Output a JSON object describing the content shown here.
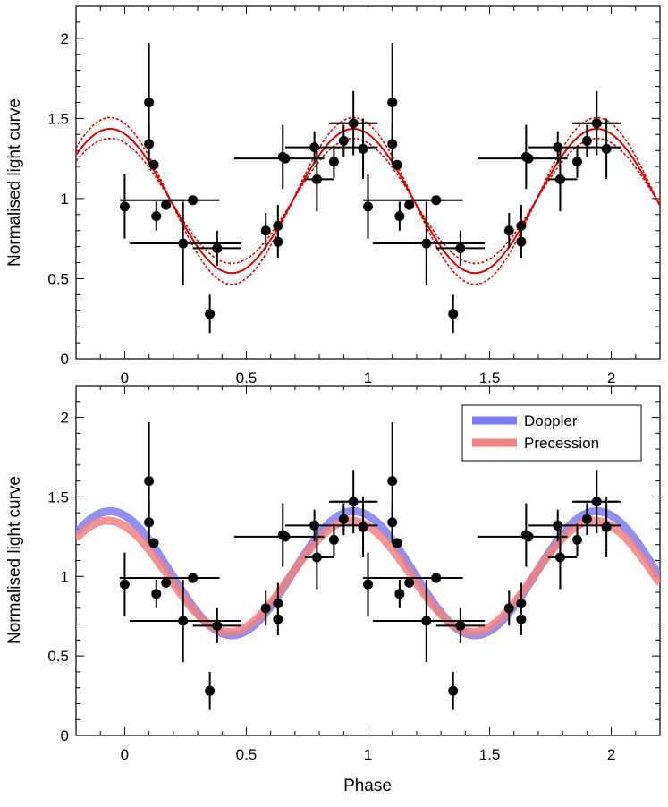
{
  "figure": {
    "xlabel": "Phase"
  },
  "chart_data": [
    {
      "type": "scatter",
      "panel": "top",
      "ylabel": "Normalised light curve",
      "xlim": [
        -0.2,
        2.2
      ],
      "ylim": [
        0,
        2.2
      ],
      "x_ticks": [
        0,
        0.5,
        1,
        1.5,
        2
      ],
      "x_tick_labels": [
        "0",
        "0.5",
        "1",
        "1.5",
        "2"
      ],
      "y_ticks": [
        0,
        0.5,
        1,
        1.5,
        2
      ],
      "y_tick_labels": [
        "0",
        "0.5",
        "1",
        "1.5",
        "2"
      ],
      "grid": false,
      "points": [
        {
          "x": 0.0,
          "y": 0.95,
          "xerr": 0.0,
          "yerr": 0.2
        },
        {
          "x": 0.1,
          "y": 1.6,
          "xerr": 0.0,
          "yerr": 0.37
        },
        {
          "x": 0.1,
          "y": 1.34,
          "xerr": 0.0,
          "yerr": 0.13
        },
        {
          "x": 0.12,
          "y": 1.21,
          "xerr": 0.0,
          "yerr": 0.0
        },
        {
          "x": 0.13,
          "y": 0.89,
          "xerr": 0.0,
          "yerr": 0.09
        },
        {
          "x": 0.17,
          "y": 0.96,
          "xerr": 0.0,
          "yerr": 0.0
        },
        {
          "x": 0.24,
          "y": 0.72,
          "xerr": 0.0,
          "yerr": 0.26
        },
        {
          "x": 0.28,
          "y": 0.99,
          "xerr": 0.11,
          "yerr": 0.0
        },
        {
          "x": 0.35,
          "y": 0.28,
          "xerr": 0.0,
          "yerr": 0.12
        },
        {
          "x": 0.38,
          "y": 0.69,
          "xerr": 0.0,
          "yerr": 0.11
        },
        {
          "x": 0.58,
          "y": 0.8,
          "xerr": 0.0,
          "yerr": 0.11
        },
        {
          "x": 0.63,
          "y": 0.73,
          "xerr": 0.0,
          "yerr": 0.1
        },
        {
          "x": 0.63,
          "y": 0.83,
          "xerr": 0.0,
          "yerr": 0.13
        },
        {
          "x": 0.65,
          "y": 1.26,
          "xerr": 0.0,
          "yerr": 0.2
        },
        {
          "x": 0.66,
          "y": 1.25,
          "xerr": 0.0,
          "yerr": 0.0
        },
        {
          "x": 0.78,
          "y": 1.32,
          "xerr": 0.0,
          "yerr": 0.1
        },
        {
          "x": 0.79,
          "y": 1.12,
          "xerr": 0.0,
          "yerr": 0.2
        },
        {
          "x": 0.86,
          "y": 1.23,
          "xerr": 0.0,
          "yerr": 0.1
        },
        {
          "x": 0.9,
          "y": 1.36,
          "xerr": 0.0,
          "yerr": 0.1
        },
        {
          "x": 0.94,
          "y": 1.47,
          "xerr": 0.09,
          "yerr": 0.2
        },
        {
          "x": 0.98,
          "y": 1.31,
          "xerr": 0.0,
          "yerr": 0.19
        },
        {
          "x": 1.0,
          "y": 0.95,
          "xerr": 0.0,
          "yerr": 0.2
        },
        {
          "x": 1.1,
          "y": 1.6,
          "xerr": 0.0,
          "yerr": 0.37
        },
        {
          "x": 1.1,
          "y": 1.34,
          "xerr": 0.0,
          "yerr": 0.13
        },
        {
          "x": 1.12,
          "y": 1.21,
          "xerr": 0.0,
          "yerr": 0.0
        },
        {
          "x": 1.13,
          "y": 0.89,
          "xerr": 0.0,
          "yerr": 0.09
        },
        {
          "x": 1.17,
          "y": 0.96,
          "xerr": 0.0,
          "yerr": 0.0
        },
        {
          "x": 1.24,
          "y": 0.72,
          "xerr": 0.0,
          "yerr": 0.26
        },
        {
          "x": 1.28,
          "y": 0.99,
          "xerr": 0.11,
          "yerr": 0.0
        },
        {
          "x": 1.35,
          "y": 0.28,
          "xerr": 0.0,
          "yerr": 0.12
        },
        {
          "x": 1.38,
          "y": 0.69,
          "xerr": 0.0,
          "yerr": 0.11
        },
        {
          "x": 1.58,
          "y": 0.8,
          "xerr": 0.0,
          "yerr": 0.11
        },
        {
          "x": 1.63,
          "y": 0.73,
          "xerr": 0.0,
          "yerr": 0.1
        },
        {
          "x": 1.63,
          "y": 0.83,
          "xerr": 0.0,
          "yerr": 0.13
        },
        {
          "x": 1.65,
          "y": 1.26,
          "xerr": 0.0,
          "yerr": 0.2
        },
        {
          "x": 1.66,
          "y": 1.25,
          "xerr": 0.0,
          "yerr": 0.0
        },
        {
          "x": 1.78,
          "y": 1.32,
          "xerr": 0.0,
          "yerr": 0.1
        },
        {
          "x": 1.79,
          "y": 1.12,
          "xerr": 0.0,
          "yerr": 0.2
        },
        {
          "x": 1.86,
          "y": 1.23,
          "xerr": 0.0,
          "yerr": 0.1
        },
        {
          "x": 1.9,
          "y": 1.36,
          "xerr": 0.0,
          "yerr": 0.1
        },
        {
          "x": 1.94,
          "y": 1.47,
          "xerr": 0.09,
          "yerr": 0.2
        },
        {
          "x": 1.98,
          "y": 1.31,
          "xerr": 0.0,
          "yerr": 0.19
        }
      ],
      "xbars": [
        {
          "x1": -0.02,
          "x2": 0.25,
          "y": 0.99
        },
        {
          "x1": 0.02,
          "x2": 0.27,
          "y": 0.72
        },
        {
          "x1": 0.07,
          "x2": 0.48,
          "y": 0.72
        },
        {
          "x1": 0.28,
          "x2": 0.48,
          "y": 0.69
        },
        {
          "x1": 0.45,
          "x2": 0.82,
          "y": 1.25
        },
        {
          "x1": 0.84,
          "x2": 1.04,
          "y": 1.47
        },
        {
          "x1": 0.66,
          "x2": 1.04,
          "y": 1.32
        },
        {
          "x1": 0.98,
          "x2": 1.25,
          "y": 0.99
        },
        {
          "x1": 1.02,
          "x2": 1.27,
          "y": 0.72
        },
        {
          "x1": 1.07,
          "x2": 1.48,
          "y": 0.72
        },
        {
          "x1": 1.28,
          "x2": 1.48,
          "y": 0.69
        },
        {
          "x1": 1.45,
          "x2": 1.82,
          "y": 1.25
        },
        {
          "x1": 1.84,
          "x2": 2.04,
          "y": 1.47
        },
        {
          "x1": 1.66,
          "x2": 2.04,
          "y": 1.32
        },
        {
          "x1": 0.74,
          "x2": 0.86,
          "y": 1.12
        },
        {
          "x1": 1.74,
          "x2": 1.86,
          "y": 1.12
        }
      ],
      "model": {
        "type": "sinusoid",
        "mean": 0.985,
        "amplitude": 0.45,
        "peak_phase": 0.94,
        "upper_amplitude": 0.52,
        "lower_amplitude": 0.39,
        "color": "#e00000"
      }
    },
    {
      "type": "scatter",
      "panel": "bottom",
      "ylabel": "Normalised light curve",
      "xlabel": "Phase",
      "xlim": [
        -0.2,
        2.2
      ],
      "ylim": [
        0,
        2.2
      ],
      "x_ticks": [
        0,
        0.5,
        1,
        1.5,
        2
      ],
      "x_tick_labels": [
        "0",
        "0.5",
        "1",
        "1.5",
        "2"
      ],
      "y_ticks": [
        0,
        0.5,
        1,
        1.5,
        2
      ],
      "y_tick_labels": [
        "0",
        "0.5",
        "1",
        "1.5",
        "2"
      ],
      "grid": false,
      "legend_position": "top-right",
      "series": [
        {
          "name": "Doppler",
          "color": "#7b7bf5",
          "mean": 1.02,
          "amplitude": 0.39,
          "peak_phase": 0.94
        },
        {
          "name": "Precession",
          "color": "#f58080",
          "mean": 1.0,
          "amplitude": 0.35,
          "peak_phase": 0.93
        }
      ]
    }
  ]
}
